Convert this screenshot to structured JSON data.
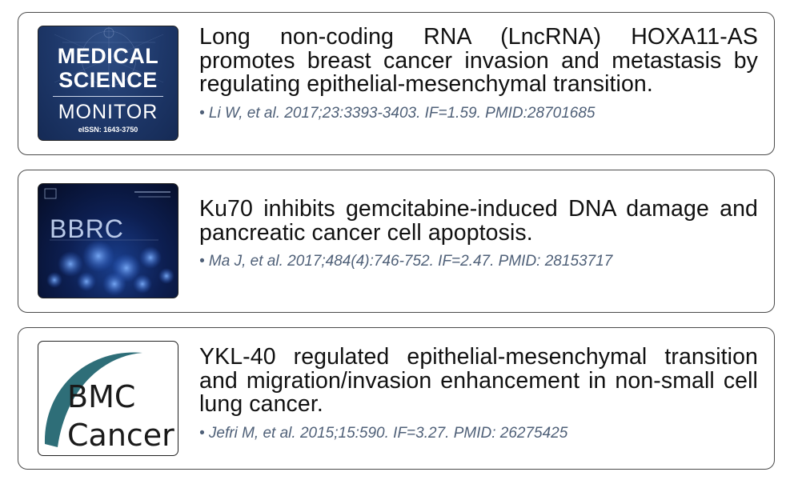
{
  "articles": [
    {
      "journal": {
        "title_line1": "MEDICAL",
        "title_line2": "SCIENCE",
        "title_line3": "MONITOR",
        "issn": "eISSN: 1643-3750"
      },
      "title": "Long non-coding RNA (LncRNA) HOXA11-AS promotes breast cancer invasion and metastasis by regulating epithelial-mesenchymal transition.",
      "citation": "• Li W, et al. 2017;23:3393-3403. IF=1.59. PMID:28701685"
    },
    {
      "journal": {
        "title_line1": "BBRC"
      },
      "title": "Ku70 inhibits gemcitabine-induced DNA damage and pancreatic cancer cell apoptosis.",
      "citation": "• Ma J, et al. 2017;484(4):746-752. IF=2.47. PMID: 28153717"
    },
    {
      "journal": {
        "title_line1": "BMC",
        "title_line2": "Cancer"
      },
      "title": "YKL-40 regulated epithelial-mesenchymal transition and migration/invasion enhancement in non-small cell lung cancer.",
      "citation": "• Jefri M, et al. 2015;15:590. IF=3.27. PMID: 26275425"
    }
  ],
  "colors": {
    "border": "#4a4a4a",
    "citation": "#4f6078",
    "bmc_arc": "#2e6e78"
  }
}
